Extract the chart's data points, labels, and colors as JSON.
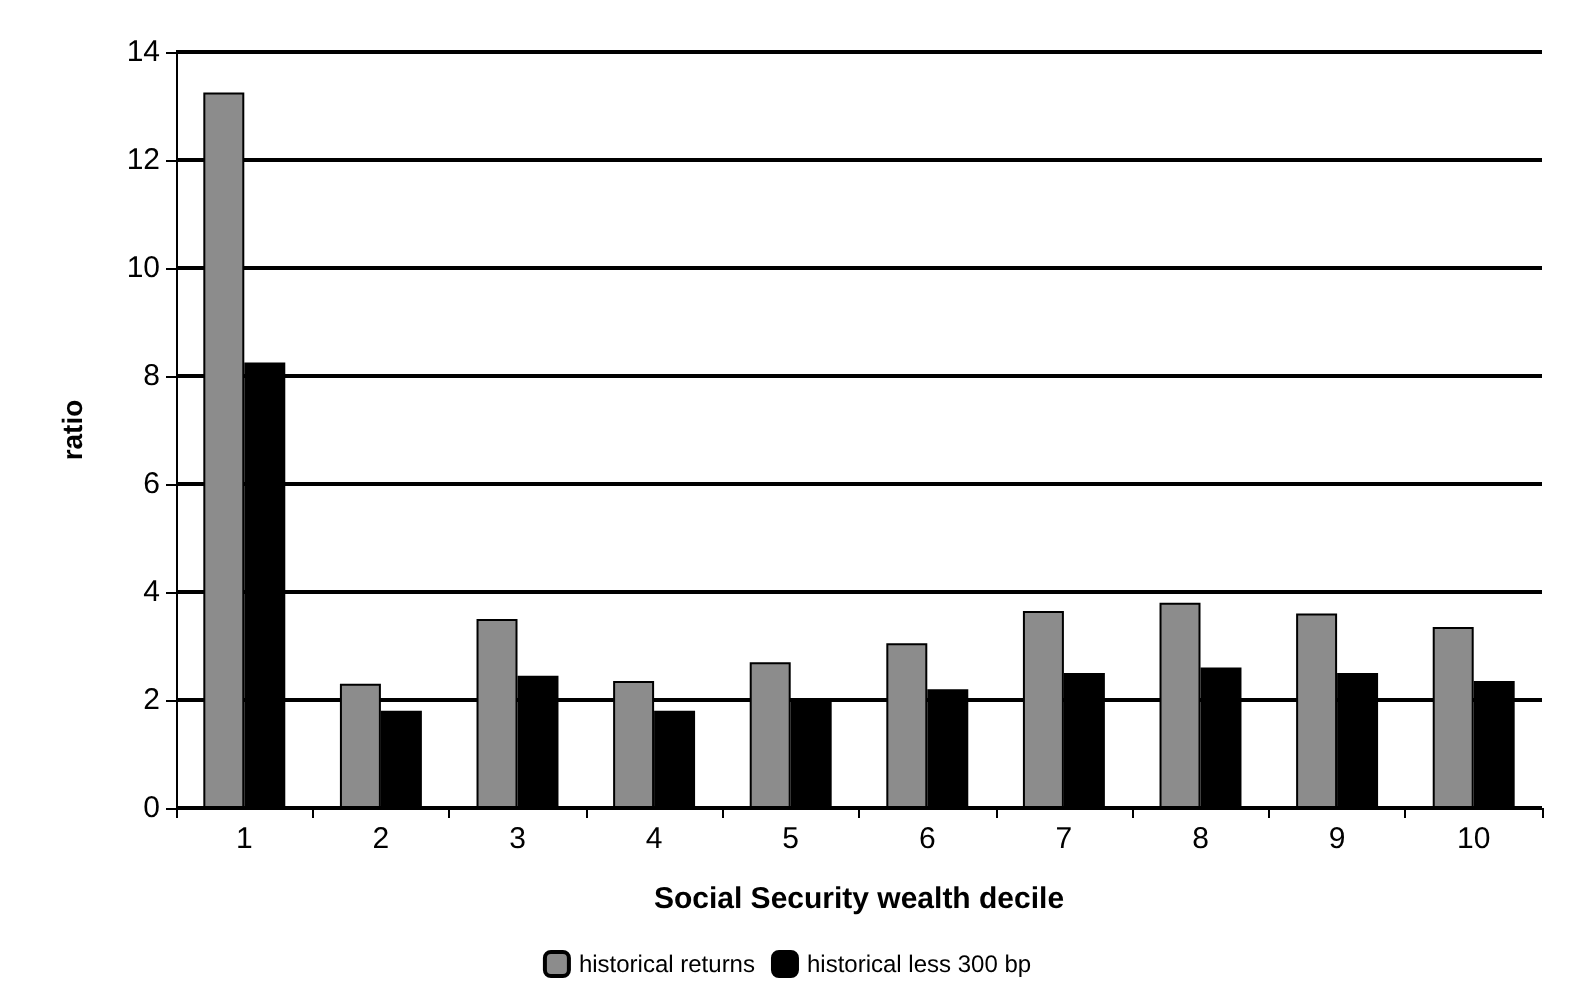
{
  "chart_data": {
    "type": "bar",
    "xlabel": "Social Security wealth decile",
    "ylabel": "ratio",
    "categories": [
      "1",
      "2",
      "3",
      "4",
      "5",
      "6",
      "7",
      "8",
      "9",
      "10"
    ],
    "series": [
      {
        "name": "historical returns",
        "color": "#8c8c8c",
        "values": [
          13.25,
          2.3,
          3.5,
          2.35,
          2.7,
          3.05,
          3.65,
          3.8,
          3.6,
          3.35
        ]
      },
      {
        "name": "historical less 300 bp",
        "color": "#000000",
        "values": [
          8.25,
          1.8,
          2.45,
          1.8,
          2.0,
          2.2,
          2.5,
          2.6,
          2.5,
          2.35
        ]
      }
    ],
    "ylim": [
      0,
      14
    ],
    "yticks": [
      0,
      2,
      4,
      6,
      8,
      10,
      12,
      14
    ],
    "grid": "y",
    "legend": "bottom"
  }
}
